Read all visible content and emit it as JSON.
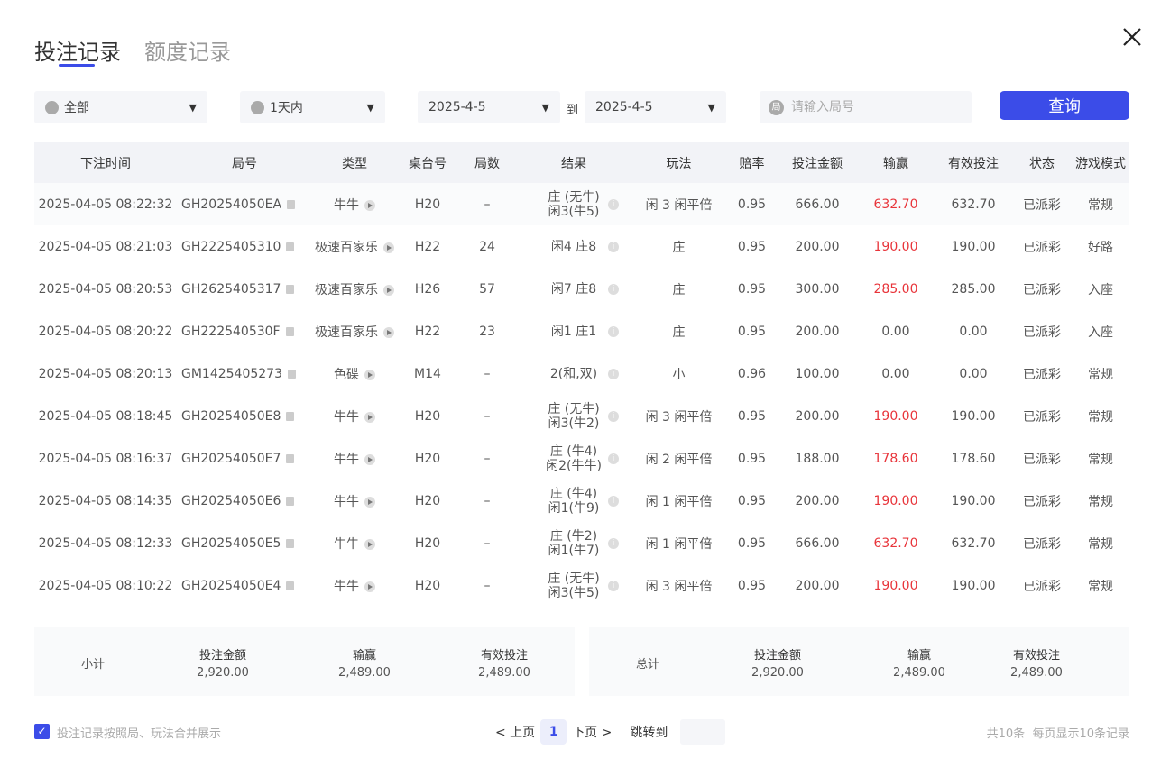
{
  "tabs": [
    {
      "label": "投注记录",
      "active": true
    },
    {
      "label": "额度记录",
      "active": false
    }
  ],
  "filters": {
    "game": "全部",
    "range": "1天内",
    "date_from": "2025-4-5",
    "to_label": "到",
    "date_to": "2025-4-5",
    "round_placeholder": "请输入局号",
    "round_icon": "局",
    "query_label": "查询"
  },
  "columns": [
    "下注时间",
    "局号",
    "类型",
    "桌台号",
    "局数",
    "结果",
    "玩法",
    "赔率",
    "投注金额",
    "输赢",
    "有效投注",
    "状态",
    "游戏模式"
  ],
  "rows": [
    {
      "time": "2025-04-05 08:22:32",
      "round": "GH20254050EA",
      "type": "牛牛",
      "table": "H20",
      "count": "–",
      "result": "庄 (无牛)\n闲3(牛5)",
      "play": "闲 3 闲平倍",
      "odds": "0.95",
      "bet": "666.00",
      "win": "632.70",
      "win_red": true,
      "valid": "632.70",
      "status": "已派彩",
      "mode": "常规"
    },
    {
      "time": "2025-04-05 08:21:03",
      "round": "GH2225405310",
      "type": "极速百家乐",
      "table": "H22",
      "count": "24",
      "result": "闲4 庄8",
      "play": "庄",
      "odds": "0.95",
      "bet": "200.00",
      "win": "190.00",
      "win_red": true,
      "valid": "190.00",
      "status": "已派彩",
      "mode": "好路"
    },
    {
      "time": "2025-04-05 08:20:53",
      "round": "GH2625405317",
      "type": "极速百家乐",
      "table": "H26",
      "count": "57",
      "result": "闲7 庄8",
      "play": "庄",
      "odds": "0.95",
      "bet": "300.00",
      "win": "285.00",
      "win_red": true,
      "valid": "285.00",
      "status": "已派彩",
      "mode": "入座"
    },
    {
      "time": "2025-04-05 08:20:22",
      "round": "GH222540530F",
      "type": "极速百家乐",
      "table": "H22",
      "count": "23",
      "result": "闲1 庄1",
      "play": "庄",
      "odds": "0.95",
      "bet": "200.00",
      "win": "0.00",
      "win_red": false,
      "valid": "0.00",
      "status": "已派彩",
      "mode": "入座"
    },
    {
      "time": "2025-04-05 08:20:13",
      "round": "GM1425405273",
      "type": "色碟",
      "table": "M14",
      "count": "–",
      "result": "2(和,双)",
      "play": "小",
      "odds": "0.96",
      "bet": "100.00",
      "win": "0.00",
      "win_red": false,
      "valid": "0.00",
      "status": "已派彩",
      "mode": "常规"
    },
    {
      "time": "2025-04-05 08:18:45",
      "round": "GH20254050E8",
      "type": "牛牛",
      "table": "H20",
      "count": "–",
      "result": "庄 (无牛)\n闲3(牛2)",
      "play": "闲 3 闲平倍",
      "odds": "0.95",
      "bet": "200.00",
      "win": "190.00",
      "win_red": true,
      "valid": "190.00",
      "status": "已派彩",
      "mode": "常规"
    },
    {
      "time": "2025-04-05 08:16:37",
      "round": "GH20254050E7",
      "type": "牛牛",
      "table": "H20",
      "count": "–",
      "result": "庄 (牛4)\n闲2(牛牛)",
      "play": "闲 2 闲平倍",
      "odds": "0.95",
      "bet": "188.00",
      "win": "178.60",
      "win_red": true,
      "valid": "178.60",
      "status": "已派彩",
      "mode": "常规"
    },
    {
      "time": "2025-04-05 08:14:35",
      "round": "GH20254050E6",
      "type": "牛牛",
      "table": "H20",
      "count": "–",
      "result": "庄 (牛4)\n闲1(牛9)",
      "play": "闲 1 闲平倍",
      "odds": "0.95",
      "bet": "200.00",
      "win": "190.00",
      "win_red": true,
      "valid": "190.00",
      "status": "已派彩",
      "mode": "常规"
    },
    {
      "time": "2025-04-05 08:12:33",
      "round": "GH20254050E5",
      "type": "牛牛",
      "table": "H20",
      "count": "–",
      "result": "庄 (牛2)\n闲1(牛7)",
      "play": "闲 1 闲平倍",
      "odds": "0.95",
      "bet": "666.00",
      "win": "632.70",
      "win_red": true,
      "valid": "632.70",
      "status": "已派彩",
      "mode": "常规"
    },
    {
      "time": "2025-04-05 08:10:22",
      "round": "GH20254050E4",
      "type": "牛牛",
      "table": "H20",
      "count": "–",
      "result": "庄 (无牛)\n闲3(牛5)",
      "play": "闲 3 闲平倍",
      "odds": "0.95",
      "bet": "200.00",
      "win": "190.00",
      "win_red": true,
      "valid": "190.00",
      "status": "已派彩",
      "mode": "常规"
    }
  ],
  "subtotal": {
    "label": "小计",
    "bet_label": "投注金额",
    "bet": "2,920.00",
    "win_label": "输赢",
    "win": "2,489.00",
    "valid_label": "有效投注",
    "valid": "2,489.00"
  },
  "total": {
    "label": "总计",
    "bet_label": "投注金额",
    "bet": "2,920.00",
    "win_label": "输赢",
    "win": "2,489.00",
    "valid_label": "有效投注",
    "valid": "2,489.00"
  },
  "footer": {
    "merge_label": "投注记录按照局、玩法合并展示",
    "merge_checked": true,
    "prev": "< 上页",
    "page": "1",
    "next": "下页 >",
    "jump": "跳转到",
    "total": "共10条",
    "per_page": "每页显示10条记录"
  },
  "colors": {
    "accent": "#3b4ce8",
    "loss_win": "#e8343a"
  }
}
